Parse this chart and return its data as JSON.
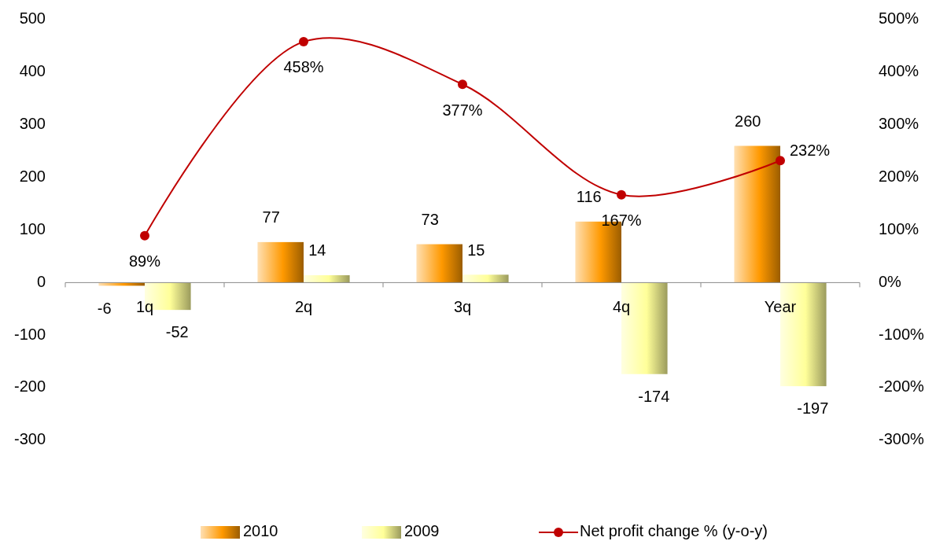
{
  "chart_data": {
    "type": "bar",
    "categories": [
      "1q",
      "2q",
      "3q",
      "4q",
      "Year"
    ],
    "series": [
      {
        "name": "2010",
        "color": "#ff9900",
        "values": [
          -6,
          77,
          73,
          116,
          260
        ]
      },
      {
        "name": "2009",
        "color": "#ffff99",
        "values": [
          -52,
          14,
          15,
          -174,
          -197
        ]
      },
      {
        "name": "Net profit change % (y-o-y)",
        "type": "line",
        "axis": "y2",
        "color": "#c00000",
        "values": [
          89,
          458,
          377,
          167,
          232
        ],
        "value_labels": [
          "89%",
          "458%",
          "377%",
          "167%",
          "232%"
        ]
      }
    ],
    "ylim": [
      -300,
      500
    ],
    "yticks": [
      -300,
      -200,
      -100,
      0,
      100,
      200,
      300,
      400,
      500
    ],
    "y2lim": [
      -300,
      500
    ],
    "y2ticks": [
      {
        "value": -300,
        "label": "-300%"
      },
      {
        "value": -200,
        "label": "-200%"
      },
      {
        "value": -100,
        "label": "-100%"
      },
      {
        "value": 0,
        "label": "0%"
      },
      {
        "value": 100,
        "label": "100%"
      },
      {
        "value": 200,
        "label": "200%"
      },
      {
        "value": 300,
        "label": "300%"
      },
      {
        "value": 400,
        "label": "400%"
      },
      {
        "value": 500,
        "label": "500%"
      }
    ],
    "data_labels": true,
    "grid": false,
    "legend": "bottom",
    "marker": "circle",
    "line_style": "solid"
  }
}
